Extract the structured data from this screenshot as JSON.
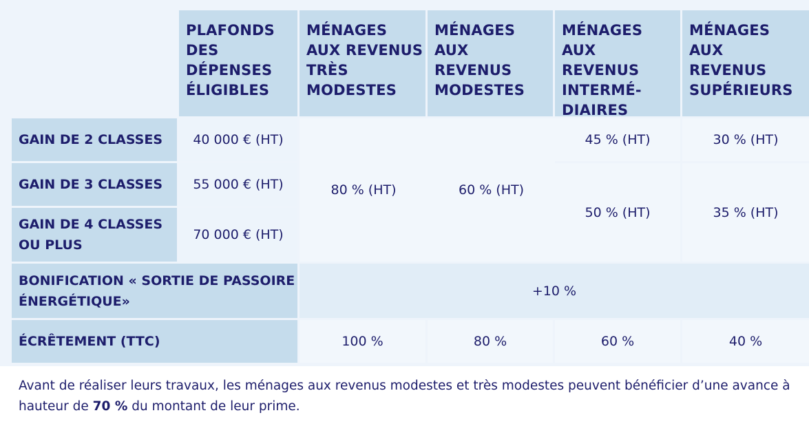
{
  "headers": {
    "plafonds": "PLAFONDS DES DÉPENSES ÉLIGIBLES",
    "tres_modestes": "MÉNAGES AUX REVENUS TRÈS MODESTES",
    "modestes": "MÉNAGES AUX REVENUS MODESTES",
    "intermediaires": "MÉNAGES AUX REVENUS INTERMÉ-DIAIRES",
    "superieurs": "MÉNAGES AUX REVENUS SUPÉRIEURS"
  },
  "rows": {
    "gain2": {
      "label": "GAIN DE 2 CLASSES",
      "plafond": "40 000 € (HT)"
    },
    "gain3": {
      "label": "GAIN DE 3 CLASSES",
      "plafond": "55 000 € (HT)"
    },
    "gain4": {
      "label": "GAIN DE 4 CLASSES OU PLUS",
      "plafond": "70 000 € (HT)"
    }
  },
  "rates": {
    "tres_modestes": "80 % (HT)",
    "modestes": "60 % (HT)",
    "intermediaires_gain2": "45 % (HT)",
    "superieurs_gain2": "30 % (HT)",
    "intermediaires_gain34": "50 % (HT)",
    "superieurs_gain34": "35 % (HT)"
  },
  "bonification": {
    "label": "BONIFICATION « SORTIE DE PASSOIRE ÉNERGÉTIQUE»",
    "value": "+10 %"
  },
  "ecretement": {
    "label": "ÉCRÊTEMENT (TTC)",
    "tres_modestes": "100 %",
    "modestes": "80 %",
    "intermediaires": "60 %",
    "superieurs": "40 %"
  },
  "footnote": {
    "text_before": "Avant de réaliser leurs travaux, les ménages aux revenus modestes et très modestes peuvent bénéficier d’une avance à hauteur de ",
    "highlight": "70 %",
    "text_after": " du montant de leur prime."
  }
}
